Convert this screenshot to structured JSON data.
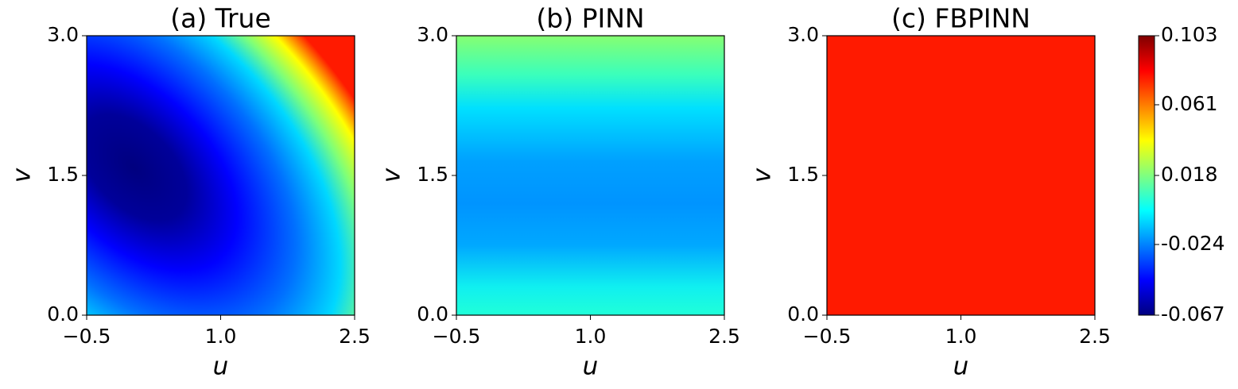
{
  "chart_data": [
    {
      "type": "contour",
      "title": "(a) True",
      "xlabel": "u",
      "ylabel": "v",
      "xlim": [
        -0.5,
        2.5
      ],
      "xticks": [
        {
          "value": -0.5,
          "label": "−0.5"
        },
        {
          "value": 1,
          "label": "1.0"
        },
        2.5
      ],
      "ylim": [
        0,
        3
      ],
      "yticks": [
        {
          "value": 0,
          "label": "0.0"
        },
        1.5,
        {
          "value": 3,
          "label": "3.0"
        }
      ]
    },
    {
      "type": "contour",
      "title": "(b) PINN",
      "xlabel": "u",
      "ylabel": "v",
      "xlim": [
        -0.5,
        2.5
      ],
      "xticks": [
        {
          "value": -0.5,
          "label": "−0.5"
        },
        {
          "value": 1,
          "label": "1.0"
        },
        2.5
      ],
      "ylim": [
        0,
        3
      ],
      "yticks": [
        {
          "value": 0,
          "label": "0.0"
        },
        1.5,
        {
          "value": 3,
          "label": "3.0"
        }
      ]
    },
    {
      "type": "contour",
      "title": "(c) FBPINN",
      "xlabel": "u",
      "ylabel": "v",
      "xlim": [
        -0.5,
        2.5
      ],
      "xticks": [
        {
          "value": -0.5,
          "label": "−0.5"
        },
        {
          "value": 1,
          "label": "1.0"
        },
        2.5
      ],
      "ylim": [
        0,
        3
      ],
      "yticks": [
        {
          "value": 0,
          "label": "0.0"
        },
        1.5,
        {
          "value": 3,
          "label": "3.0"
        }
      ]
    },
    {
      "type": "colorbar",
      "colormap": "jet",
      "ylim": [
        -0.067,
        0.103
      ],
      "yticks": [
        -0.067,
        -0.024,
        0.018,
        0.061,
        0.103
      ]
    }
  ]
}
